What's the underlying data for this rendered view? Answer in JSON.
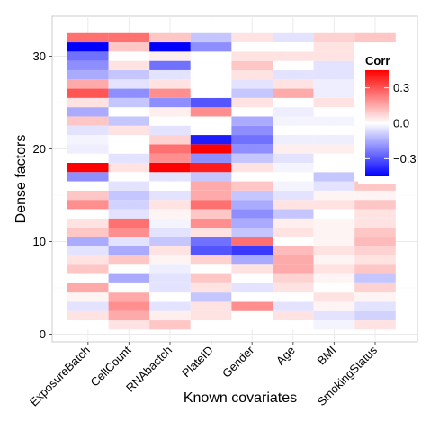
{
  "chart_data": {
    "type": "heatmap",
    "xlabel": "Known covariates",
    "ylabel": "Dense factors",
    "x_categories": [
      "ExposureBatch",
      "CellCount",
      "RNAbactch",
      "PlateID",
      "Gender",
      "Age",
      "BMI",
      "SmokingStatus"
    ],
    "y_range": [
      1,
      32
    ],
    "y_ticks": [
      0,
      10,
      20,
      30
    ],
    "grid": true,
    "colors": {
      "neg": "#0000ff",
      "mid": "#ffffff",
      "pos": "#ff0000",
      "panel_bg": "#ffffff",
      "grid": "#ebebeb"
    },
    "legend": {
      "title": "Corr",
      "placement": "top-right-inside",
      "range": [
        -0.45,
        0.45
      ],
      "ticks": [
        0.3,
        0.0,
        -0.3
      ],
      "tick_labels": [
        "0.3",
        "0.0",
        "−0.3"
      ]
    },
    "rows": [
      {
        "y": 1,
        "values": [
          0.0,
          0.05,
          0.1,
          0.0,
          0.0,
          0.0,
          -0.02,
          0.05
        ]
      },
      {
        "y": 2,
        "values": [
          0.05,
          0.15,
          0.03,
          0.05,
          0.0,
          0.05,
          -0.05,
          -0.08
        ]
      },
      {
        "y": 3,
        "values": [
          -0.05,
          0.2,
          -0.05,
          0.05,
          0.2,
          -0.05,
          0.02,
          -0.05
        ]
      },
      {
        "y": 4,
        "values": [
          0.02,
          0.15,
          0.0,
          -0.1,
          0.0,
          0.0,
          0.05,
          0.02
        ]
      },
      {
        "y": 5,
        "values": [
          0.15,
          0.0,
          -0.05,
          0.05,
          -0.05,
          0.05,
          0.0,
          0.08
        ]
      },
      {
        "y": 6,
        "values": [
          0.0,
          -0.15,
          -0.05,
          0.1,
          0.0,
          0.08,
          0.02,
          -0.1
        ]
      },
      {
        "y": 7,
        "values": [
          0.1,
          0.0,
          -0.03,
          0.0,
          0.05,
          0.15,
          0.05,
          0.1
        ]
      },
      {
        "y": 8,
        "values": [
          0.05,
          0.1,
          0.02,
          0.08,
          -0.15,
          0.15,
          0.02,
          0.05
        ]
      },
      {
        "y": 9,
        "values": [
          -0.05,
          -0.15,
          0.05,
          -0.3,
          -0.35,
          0.12,
          0.05,
          0.08
        ]
      },
      {
        "y": 10,
        "values": [
          -0.15,
          -0.05,
          -0.1,
          -0.25,
          0.25,
          0.0,
          0.02,
          0.12
        ]
      },
      {
        "y": 11,
        "values": [
          0.1,
          0.2,
          -0.05,
          0.05,
          -0.1,
          0.05,
          0.02,
          0.1
        ]
      },
      {
        "y": 12,
        "values": [
          0.05,
          0.25,
          -0.02,
          0.2,
          -0.15,
          0.03,
          0.02,
          0.05
        ]
      },
      {
        "y": 13,
        "values": [
          0.0,
          -0.05,
          0.02,
          0.1,
          -0.2,
          -0.1,
          0.0,
          0.05
        ]
      },
      {
        "y": 14,
        "values": [
          0.2,
          -0.08,
          0.05,
          0.25,
          -0.15,
          0.05,
          0.05,
          0.1
        ]
      },
      {
        "y": 15,
        "values": [
          0.1,
          -0.1,
          -0.05,
          0.15,
          -0.1,
          -0.05,
          0.02,
          0.02
        ]
      },
      {
        "y": 16,
        "values": [
          0.0,
          -0.05,
          0.0,
          0.15,
          0.1,
          -0.02,
          -0.05,
          0.1
        ]
      },
      {
        "y": 17,
        "values": [
          -0.2,
          0.0,
          -0.05,
          -0.1,
          0.0,
          0.0,
          -0.1,
          0.0
        ]
      },
      {
        "y": 18,
        "values": [
          0.5,
          0.05,
          0.55,
          0.4,
          0.05,
          -0.02,
          0.0,
          0.0
        ]
      },
      {
        "y": 19,
        "values": [
          0.0,
          -0.05,
          0.2,
          -0.2,
          -0.1,
          -0.05,
          0.0,
          0.0
        ]
      },
      {
        "y": 20,
        "values": [
          -0.03,
          0.0,
          0.25,
          0.45,
          -0.2,
          0.03,
          0.03,
          0.0
        ]
      },
      {
        "y": 21,
        "values": [
          -0.02,
          0.0,
          0.08,
          -0.4,
          -0.25,
          -0.03,
          -0.03,
          0.0
        ]
      },
      {
        "y": 22,
        "values": [
          -0.05,
          0.05,
          -0.05,
          0.0,
          -0.2,
          0.0,
          0.0,
          0.0
        ]
      },
      {
        "y": 23,
        "values": [
          0.1,
          -0.1,
          0.0,
          0.0,
          -0.15,
          -0.02,
          -0.02,
          0.0
        ]
      },
      {
        "y": 24,
        "values": [
          -0.15,
          0.0,
          0.03,
          0.2,
          0.0,
          -0.03,
          0.0,
          0.0
        ]
      },
      {
        "y": 25,
        "values": [
          0.05,
          -0.1,
          -0.2,
          -0.3,
          0.05,
          0.0,
          0.05,
          0.0
        ]
      },
      {
        "y": 26,
        "values": [
          0.3,
          -0.2,
          0.2,
          0.0,
          -0.1,
          0.15,
          -0.03,
          0.0
        ]
      },
      {
        "y": 27,
        "values": [
          0.15,
          -0.05,
          0.05,
          0.0,
          -0.05,
          0.05,
          -0.03,
          0.0
        ]
      },
      {
        "y": 28,
        "values": [
          -0.15,
          -0.1,
          -0.05,
          0.0,
          0.05,
          -0.05,
          -0.05,
          0.0
        ]
      },
      {
        "y": 29,
        "values": [
          -0.2,
          0.05,
          -0.25,
          0.0,
          0.1,
          0.0,
          -0.05,
          0.0
        ]
      },
      {
        "y": 30,
        "values": [
          -0.25,
          0.0,
          0.03,
          0.0,
          0.05,
          0.05,
          0.05,
          0.0
        ]
      },
      {
        "y": 31,
        "values": [
          -0.6,
          0.1,
          -0.5,
          -0.2,
          0.0,
          0.0,
          0.05,
          0.0
        ]
      },
      {
        "y": 32,
        "values": [
          0.25,
          0.25,
          0.1,
          -0.1,
          0.05,
          -0.05,
          0.08,
          0.1
        ]
      }
    ]
  }
}
